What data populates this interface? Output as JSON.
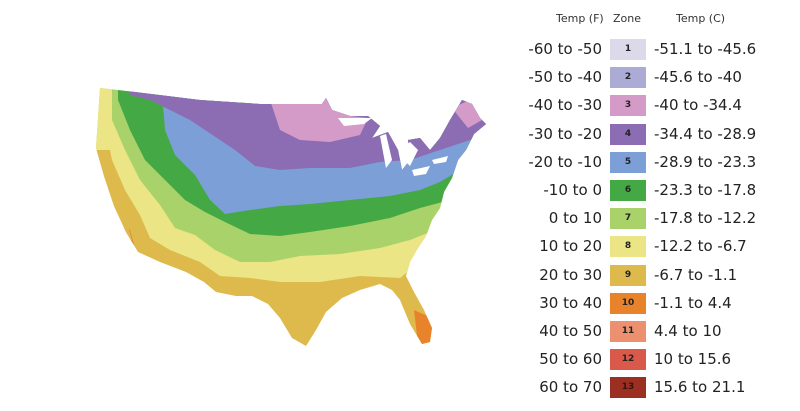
{
  "legend": {
    "headers": {
      "temp_f": "Temp (F)",
      "zone": "Zone",
      "temp_c": "Temp (C)"
    },
    "zones": [
      {
        "zone": "1",
        "temp_f": "-60 to -50",
        "temp_c": "-51.1 to -45.6",
        "color": "#dcd9ea"
      },
      {
        "zone": "2",
        "temp_f": "-50 to -40",
        "temp_c": "-45.6 to -40",
        "color": "#ababd6"
      },
      {
        "zone": "3",
        "temp_f": "-40 to -30",
        "temp_c": "-40 to -34.4",
        "color": "#d49bc9"
      },
      {
        "zone": "4",
        "temp_f": "-30 to -20",
        "temp_c": "-34.4 to -28.9",
        "color": "#8c6db4"
      },
      {
        "zone": "5",
        "temp_f": "-20 to -10",
        "temp_c": "-28.9 to -23.3",
        "color": "#7b9fd6"
      },
      {
        "zone": "6",
        "temp_f": "-10 to 0",
        "temp_c": "-23.3 to -17.8",
        "color": "#44a845"
      },
      {
        "zone": "7",
        "temp_f": "0 to 10",
        "temp_c": "-17.8 to -12.2",
        "color": "#a9d36a"
      },
      {
        "zone": "8",
        "temp_f": "10 to 20",
        "temp_c": "-12.2 to -6.7",
        "color": "#ebe585"
      },
      {
        "zone": "9",
        "temp_f": "20 to 30",
        "temp_c": "-6.7 to -1.1",
        "color": "#deba4c"
      },
      {
        "zone": "10",
        "temp_f": "30 to 40",
        "temp_c": "-1.1 to 4.4",
        "color": "#e8832c"
      },
      {
        "zone": "11",
        "temp_f": "40 to 50",
        "temp_c": "4.4 to 10",
        "color": "#ec9070"
      },
      {
        "zone": "12",
        "temp_f": "50 to 60",
        "temp_c": "10 to 15.6",
        "color": "#d95a4a"
      },
      {
        "zone": "13",
        "temp_f": "60 to 70",
        "temp_c": "15.6 to 21.1",
        "color": "#9b2f22"
      }
    ]
  }
}
